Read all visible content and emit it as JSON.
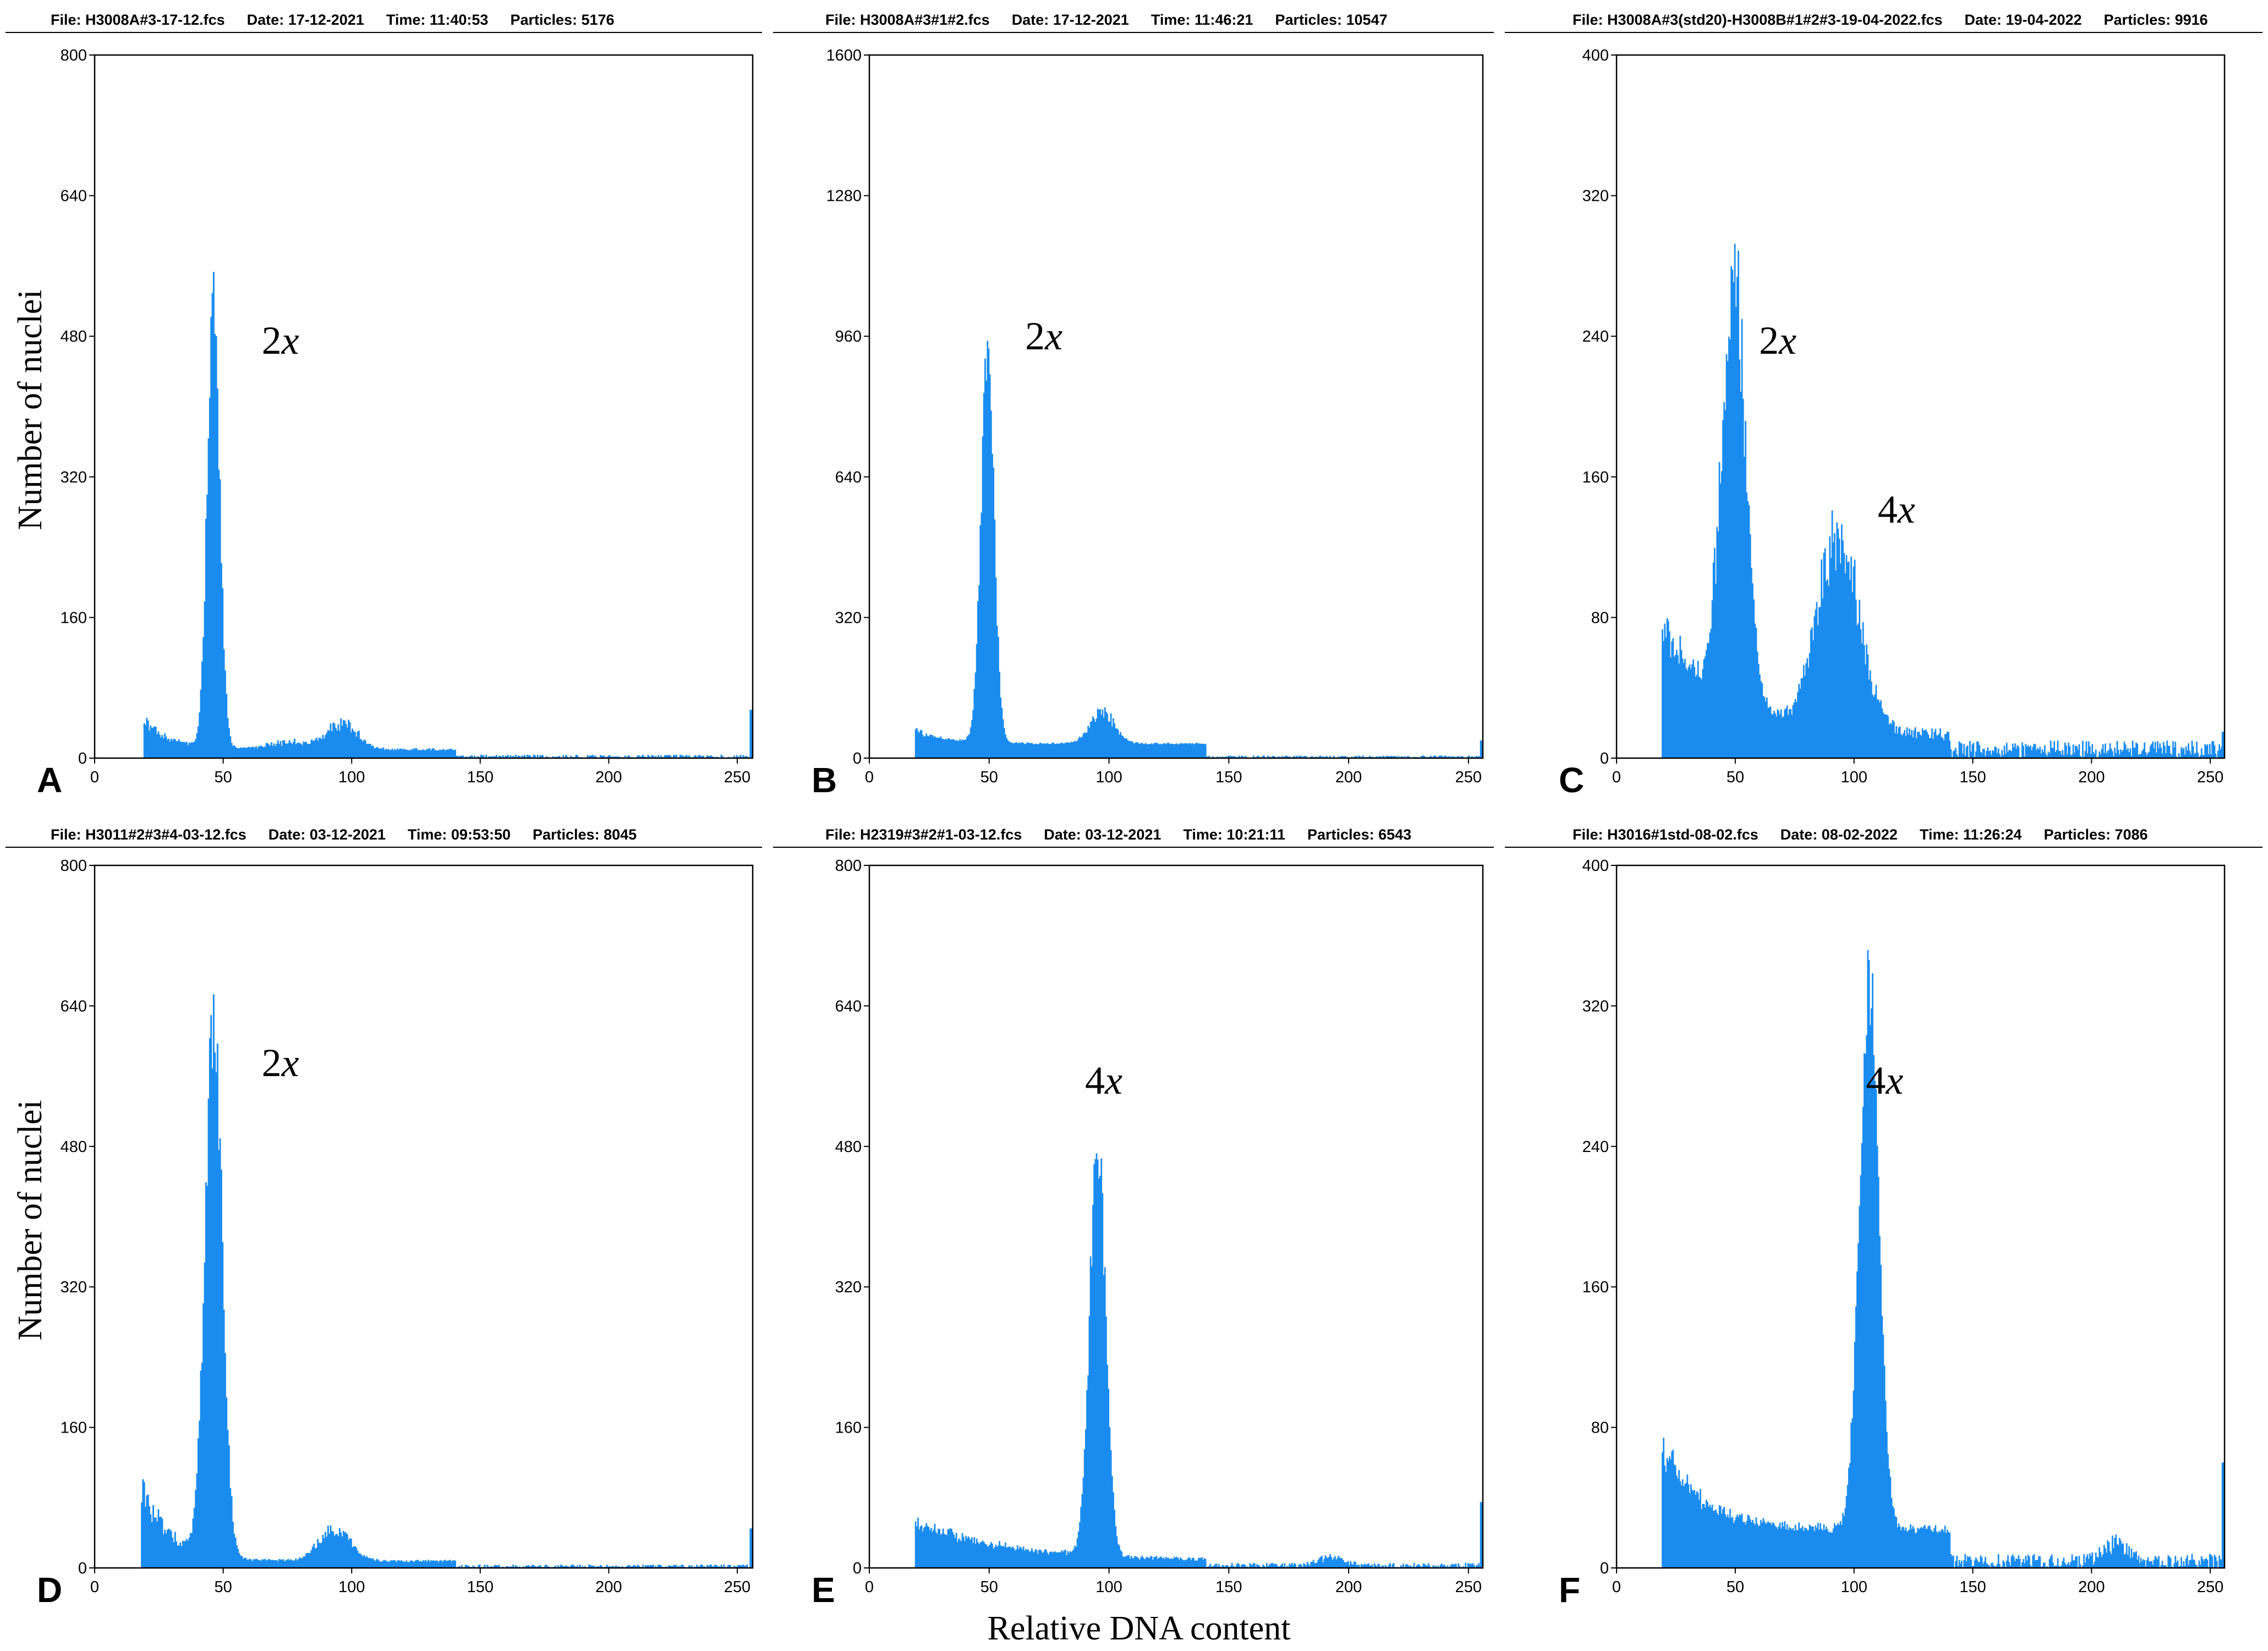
{
  "figure": {
    "ylabel": "Number of nuclei",
    "xlabel": "Relative DNA content",
    "bar_color": "#1a8cf0"
  },
  "chart_data": [
    {
      "panel": "A",
      "type": "bar",
      "header": {
        "file": "File: H3008A#3-17-12.fcs",
        "date": "Date: 17-12-2021",
        "time": "Time: 11:40:53",
        "particles": "Particles: 5176"
      },
      "xlim": [
        0,
        256
      ],
      "ylim": [
        0,
        800
      ],
      "xticks": [
        0,
        50,
        100,
        150,
        200,
        250
      ],
      "yticks": [
        0,
        160,
        320,
        480,
        640,
        800
      ],
      "annotations": [
        {
          "num": "2",
          "var": "x",
          "at": [
            65,
            460
          ]
        }
      ],
      "peaks": [
        {
          "x": 46,
          "y": 510,
          "sd": 2.4,
          "fluct": 0.12
        },
        {
          "x": 96,
          "y": 28,
          "sd": 6,
          "fluct": 0.3
        },
        {
          "x": 75,
          "y": 8,
          "sd": 8,
          "fluct": 0.4
        }
      ],
      "debris": {
        "start": 19,
        "value": 42,
        "decay": 10,
        "base": 8,
        "fluct": 0.25
      },
      "background": 2,
      "last_bar": 55,
      "x": [
        20,
        22,
        25,
        30,
        35,
        40,
        43,
        45,
        46,
        47,
        48,
        50,
        52,
        60,
        70,
        80,
        90,
        96,
        100,
        110,
        150,
        200,
        255
      ],
      "values": [
        45,
        40,
        25,
        20,
        30,
        60,
        200,
        440,
        520,
        480,
        300,
        60,
        20,
        10,
        8,
        8,
        20,
        35,
        25,
        6,
        2,
        2,
        55
      ]
    },
    {
      "panel": "B",
      "type": "bar",
      "header": {
        "file": "File: H3008A#3#1#2.fcs",
        "date": "Date: 17-12-2021",
        "time": "Time: 11:46:21",
        "particles": "Particles: 10547"
      },
      "xlim": [
        0,
        256
      ],
      "ylim": [
        0,
        1600
      ],
      "xticks": [
        0,
        50,
        100,
        150,
        200,
        250
      ],
      "yticks": [
        0,
        320,
        640,
        960,
        1280,
        1600
      ],
      "annotations": [
        {
          "num": "2",
          "var": "x",
          "at": [
            65,
            930
          ]
        }
      ],
      "peaks": [
        {
          "x": 49,
          "y": 880,
          "sd": 2.7,
          "fluct": 0.1
        },
        {
          "x": 97,
          "y": 72,
          "sd": 5,
          "fluct": 0.25
        }
      ],
      "debris": {
        "start": 19,
        "value": 60,
        "decay": 14,
        "base": 30,
        "fluct": 0.25
      },
      "background": 3,
      "last_bar": 40,
      "x": [
        20,
        30,
        40,
        45,
        48,
        49,
        50,
        52,
        55,
        60,
        70,
        90,
        97,
        105,
        150,
        200,
        255
      ],
      "values": [
        60,
        45,
        70,
        320,
        800,
        870,
        700,
        300,
        80,
        15,
        10,
        40,
        75,
        20,
        3,
        3,
        40
      ]
    },
    {
      "panel": "C",
      "type": "bar",
      "header": {
        "file": "File: H3008A#3(std20)-H3008B#1#2#3-19-04-2022.fcs",
        "date": "Date: 19-04-2022",
        "time": "",
        "particles": "Particles: 9916"
      },
      "xlim": [
        0,
        256
      ],
      "ylim": [
        0,
        400
      ],
      "xticks": [
        0,
        50,
        100,
        150,
        200,
        250
      ],
      "yticks": [
        0,
        80,
        160,
        240,
        320,
        400
      ],
      "annotations": [
        {
          "num": "2",
          "var": "x",
          "at": [
            60,
            230
          ]
        },
        {
          "num": "4",
          "var": "x",
          "at": [
            110,
            134
          ]
        }
      ],
      "peaks": [
        {
          "x": 49,
          "y": 245,
          "sd": 5,
          "fluct": 0.15
        },
        {
          "x": 93,
          "y": 108,
          "sd": 9,
          "fluct": 0.2
        }
      ],
      "debris": {
        "start": 19,
        "value": 70,
        "decay": 25,
        "base": 8,
        "fluct": 0.2
      },
      "background": 5,
      "last_bar": 15,
      "x": [
        19,
        20,
        30,
        40,
        45,
        50,
        55,
        60,
        65,
        70,
        80,
        90,
        95,
        100,
        110,
        120,
        150,
        200,
        255
      ],
      "values": [
        60,
        75,
        60,
        110,
        220,
        300,
        200,
        60,
        30,
        40,
        80,
        130,
        150,
        110,
        30,
        8,
        5,
        3,
        15
      ]
    },
    {
      "panel": "D",
      "type": "bar",
      "header": {
        "file": "File: H3011#2#3#4-03-12.fcs",
        "date": "Date: 03-12-2021",
        "time": "Time: 09:53:50",
        "particles": "Particles: 8045"
      },
      "xlim": [
        0,
        256
      ],
      "ylim": [
        0,
        800
      ],
      "xticks": [
        0,
        50,
        100,
        150,
        200,
        250
      ],
      "yticks": [
        0,
        160,
        320,
        480,
        640,
        800
      ],
      "annotations": [
        {
          "num": "2",
          "var": "x",
          "at": [
            65,
            560
          ]
        }
      ],
      "peaks": [
        {
          "x": 46,
          "y": 600,
          "sd": 3.3,
          "fluct": 0.12
        },
        {
          "x": 93,
          "y": 36,
          "sd": 6,
          "fluct": 0.25
        }
      ],
      "debris": {
        "start": 18,
        "value": 90,
        "decay": 11,
        "base": 6,
        "fluct": 0.25
      },
      "background": 2,
      "last_bar": 45,
      "x": [
        18,
        20,
        25,
        30,
        35,
        40,
        44,
        46,
        47,
        48,
        50,
        55,
        70,
        85,
        93,
        100,
        150,
        200,
        255
      ],
      "values": [
        95,
        80,
        60,
        60,
        100,
        300,
        550,
        660,
        650,
        500,
        100,
        15,
        8,
        30,
        45,
        20,
        3,
        2,
        45
      ]
    },
    {
      "panel": "E",
      "type": "bar",
      "header": {
        "file": "File: H2319#3#2#1-03-12.fcs",
        "date": "Date: 03-12-2021",
        "time": "Time: 10:21:11",
        "particles": "Particles: 6543"
      },
      "xlim": [
        0,
        256
      ],
      "ylim": [
        0,
        800
      ],
      "xticks": [
        0,
        50,
        100,
        150,
        200,
        250
      ],
      "yticks": [
        0,
        160,
        320,
        480,
        640,
        800
      ],
      "annotations": [
        {
          "num": "4",
          "var": "x",
          "at": [
            90,
            540
          ]
        }
      ],
      "peaks": [
        {
          "x": 95,
          "y": 470,
          "sd": 3.3,
          "fluct": 0.1
        },
        {
          "x": 192,
          "y": 10,
          "sd": 5,
          "fluct": 0.3
        }
      ],
      "debris": {
        "start": 19,
        "value": 48,
        "decay": 40,
        "base": 5,
        "fluct": 0.2
      },
      "background": 3,
      "last_bar": 75,
      "x": [
        19,
        25,
        40,
        60,
        80,
        88,
        92,
        94,
        95,
        96,
        98,
        102,
        110,
        150,
        190,
        200,
        255
      ],
      "values": [
        50,
        40,
        30,
        20,
        20,
        60,
        300,
        450,
        500,
        420,
        200,
        30,
        5,
        3,
        12,
        5,
        75
      ]
    },
    {
      "panel": "F",
      "type": "bar",
      "header": {
        "file": "File: H3016#1std-08-02.fcs",
        "date": "Date: 08-02-2022",
        "time": "Time: 11:26:24",
        "particles": "Particles: 7086"
      },
      "xlim": [
        0,
        256
      ],
      "ylim": [
        0,
        400
      ],
      "xticks": [
        0,
        50,
        100,
        150,
        200,
        250
      ],
      "yticks": [
        0,
        80,
        160,
        240,
        320,
        400
      ],
      "annotations": [
        {
          "num": "4",
          "var": "x",
          "at": [
            105,
            270
          ]
        }
      ],
      "peaks": [
        {
          "x": 106,
          "y": 315,
          "sd": 4,
          "fluct": 0.1
        },
        {
          "x": 210,
          "y": 10,
          "sd": 5,
          "fluct": 0.3
        }
      ],
      "debris": {
        "start": 19,
        "value": 65,
        "decay": 16,
        "base": 18,
        "fluct": 0.2
      },
      "background": 4,
      "last_bar": 60,
      "x": [
        19,
        20,
        30,
        50,
        70,
        90,
        100,
        104,
        106,
        108,
        112,
        120,
        150,
        200,
        210,
        255
      ],
      "values": [
        60,
        70,
        30,
        20,
        25,
        60,
        160,
        300,
        335,
        330,
        150,
        6,
        4,
        3,
        15,
        60
      ]
    }
  ]
}
